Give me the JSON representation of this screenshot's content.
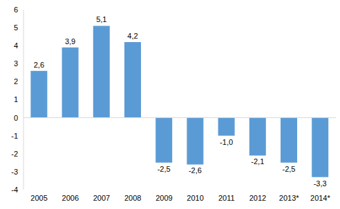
{
  "chart_data": {
    "type": "bar",
    "categories": [
      "2005",
      "2006",
      "2007",
      "2008",
      "2009",
      "2010",
      "2011",
      "2012",
      "2013*",
      "2014*"
    ],
    "values": [
      2.6,
      3.9,
      5.1,
      4.2,
      -2.5,
      -2.6,
      -1.0,
      -2.1,
      -2.5,
      -3.3
    ],
    "value_labels": [
      "2,6",
      "3,9",
      "5,1",
      "4,2",
      "-2,5",
      "-2,6",
      "-1,0",
      "-2,1",
      "-2,5",
      "-3,3"
    ],
    "data_labels": true,
    "color": "#5b9bd5",
    "ylim": [
      -4,
      6
    ],
    "yticks": [
      -4,
      -3,
      -2,
      -1,
      0,
      1,
      2,
      3,
      4,
      5,
      6
    ],
    "grid": false
  }
}
